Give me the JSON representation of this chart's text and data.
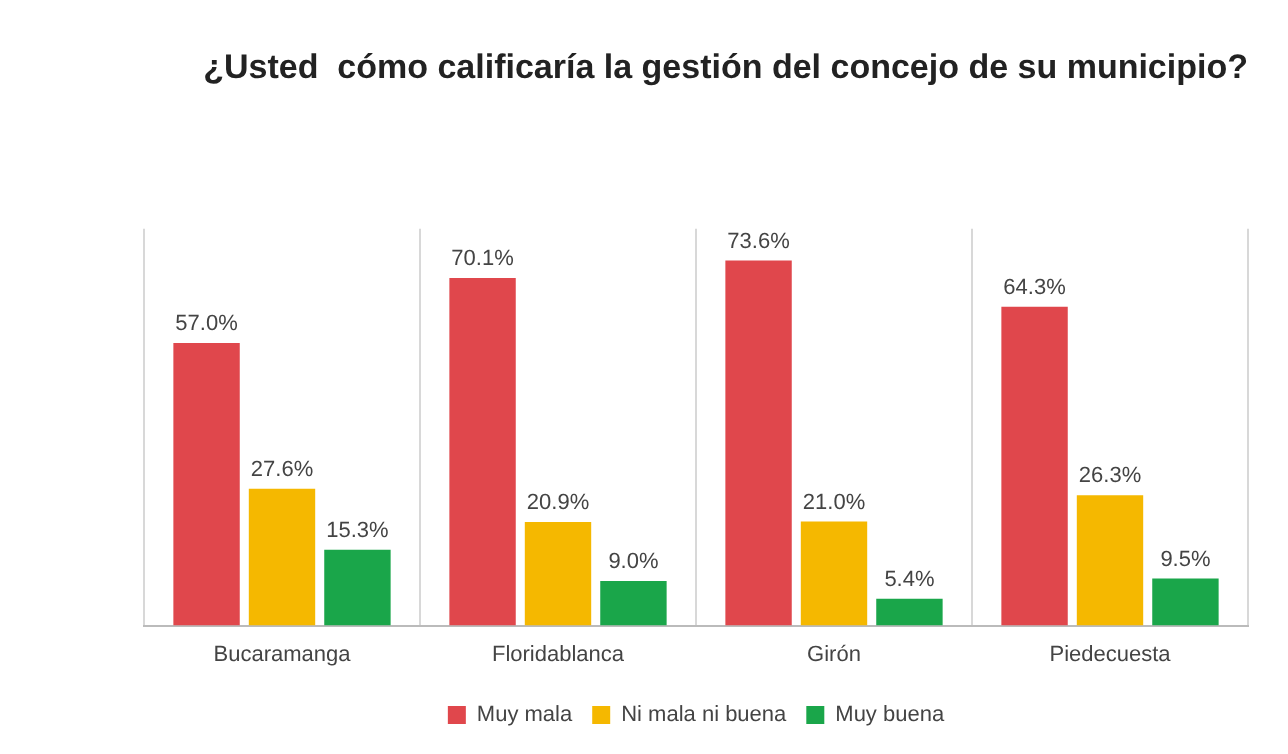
{
  "chart_data": {
    "type": "bar",
    "title": "¿Usted  cómo calificaría la gestión del concejo de su municipio?",
    "categories": [
      "Bucaramanga",
      "Floridablanca",
      "Girón",
      "Piedecuesta"
    ],
    "series": [
      {
        "name": "Muy mala",
        "color": "#e0474c",
        "values": [
          57.0,
          70.1,
          73.6,
          64.3
        ],
        "value_labels": [
          "57.0%",
          "70.1%",
          "73.6%",
          "64.3%"
        ]
      },
      {
        "name": "Ni mala ni buena",
        "color": "#f5b800",
        "values": [
          27.6,
          20.9,
          21.0,
          26.3
        ],
        "value_labels": [
          "27.6%",
          "20.9%",
          "21.0%",
          "26.3%"
        ]
      },
      {
        "name": "Muy buena",
        "color": "#1aa64a",
        "values": [
          15.3,
          9.0,
          5.4,
          9.5
        ],
        "value_labels": [
          "15.3%",
          "9.0%",
          "5.4%",
          "9.5%"
        ]
      }
    ],
    "grid": "x",
    "legend": "bottom",
    "tick_labels": "x"
  }
}
